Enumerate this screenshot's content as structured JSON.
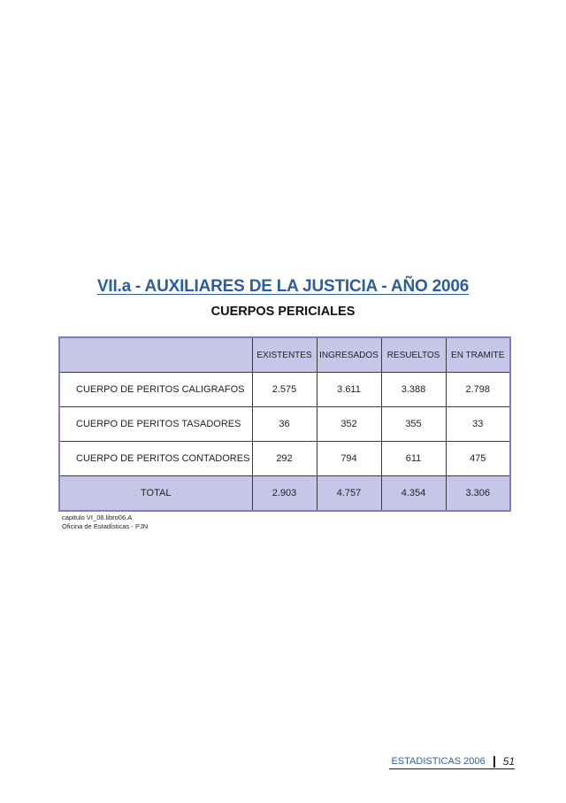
{
  "title": "VII.a - AUXILIARES DE LA JUSTICIA - AÑO 2006",
  "subtitle": "CUERPOS PERICIALES",
  "table": {
    "headers": [
      "",
      "EXISTENTES",
      "INGRESADOS",
      "RESUELTOS",
      "EN TRAMITE"
    ],
    "rows": [
      {
        "label": "CUERPO DE PERITOS CALIGRAFOS",
        "values": [
          "2.575",
          "3.611",
          "3.388",
          "2.798"
        ]
      },
      {
        "label": "CUERPO DE PERITOS TASADORES",
        "values": [
          "36",
          "352",
          "355",
          "33"
        ]
      },
      {
        "label": "CUERPO DE PERITOS CONTADORES",
        "values": [
          "292",
          "794",
          "611",
          "475"
        ]
      }
    ],
    "total": {
      "label": "TOTAL",
      "values": [
        "2.903",
        "4.757",
        "4.354",
        "3.306"
      ]
    }
  },
  "source": [
    "capitulo VI_06.libro06.A",
    "Oficina de Estadísticas - PJN"
  ],
  "footer": {
    "section": "ESTADISTICAS 2006",
    "page": "51"
  },
  "colors": {
    "accent": "#2e5d9e",
    "header_fill": "#c6c7e8",
    "table_border": "#7d7fc3"
  }
}
